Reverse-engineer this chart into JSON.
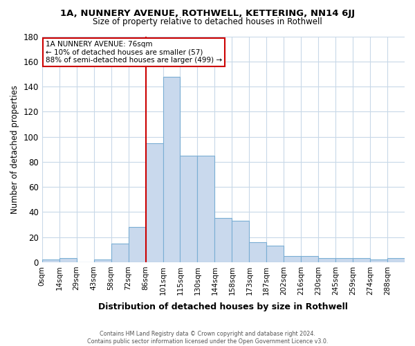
{
  "title": "1A, NUNNERY AVENUE, ROTHWELL, KETTERING, NN14 6JJ",
  "subtitle": "Size of property relative to detached houses in Rothwell",
  "xlabel": "Distribution of detached houses by size in Rothwell",
  "ylabel": "Number of detached properties",
  "bins": [
    "0sqm",
    "14sqm",
    "29sqm",
    "43sqm",
    "58sqm",
    "72sqm",
    "86sqm",
    "101sqm",
    "115sqm",
    "130sqm",
    "144sqm",
    "158sqm",
    "173sqm",
    "187sqm",
    "202sqm",
    "216sqm",
    "230sqm",
    "245sqm",
    "259sqm",
    "274sqm",
    "288sqm"
  ],
  "values": [
    2,
    3,
    0,
    2,
    15,
    28,
    95,
    148,
    85,
    85,
    35,
    33,
    16,
    13,
    5,
    5,
    3,
    3,
    3,
    2,
    3
  ],
  "bar_color": "#c9d9ed",
  "bar_edge_color": "#7aaed4",
  "vline_color": "#cc0000",
  "vline_bin_index": 6,
  "annotation_text": "1A NUNNERY AVENUE: 76sqm\n← 10% of detached houses are smaller (57)\n88% of semi-detached houses are larger (499) →",
  "annotation_box_color": "#ffffff",
  "annotation_box_edge": "#cc0000",
  "grid_color": "#c8d8e8",
  "background_color": "#ffffff",
  "ylim": [
    0,
    180
  ],
  "footnote": "Contains HM Land Registry data © Crown copyright and database right 2024.\nContains public sector information licensed under the Open Government Licence v3.0."
}
